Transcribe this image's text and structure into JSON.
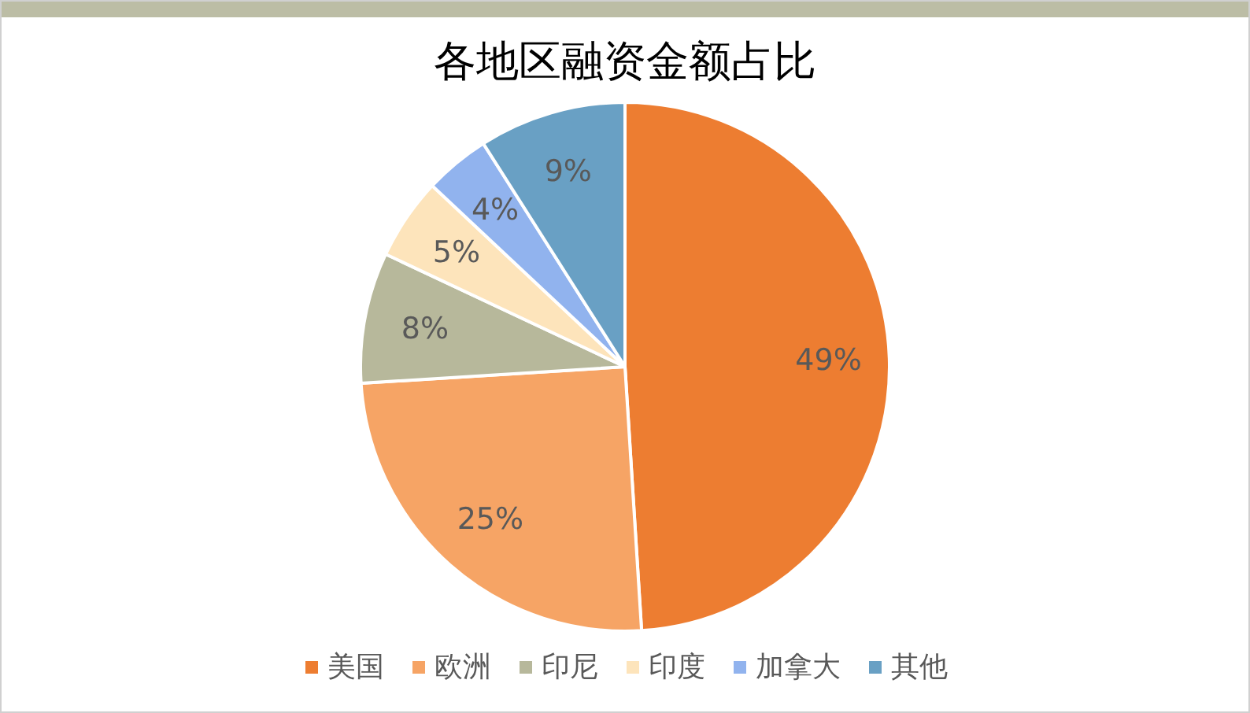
{
  "chart_data": {
    "type": "pie",
    "title": "各地区融资金额占比",
    "categories": [
      "美国",
      "欧洲",
      "印尼",
      "印度",
      "加拿大",
      "其他"
    ],
    "values": [
      49,
      25,
      8,
      5,
      4,
      9
    ],
    "value_labels": [
      "49%",
      "25%",
      "8%",
      "5%",
      "4%",
      "9%"
    ],
    "colors": [
      "#ed7d31",
      "#f6a465",
      "#b7b89b",
      "#fde4bb",
      "#91b3ee",
      "#69a0c4"
    ],
    "legend": "bottom"
  }
}
